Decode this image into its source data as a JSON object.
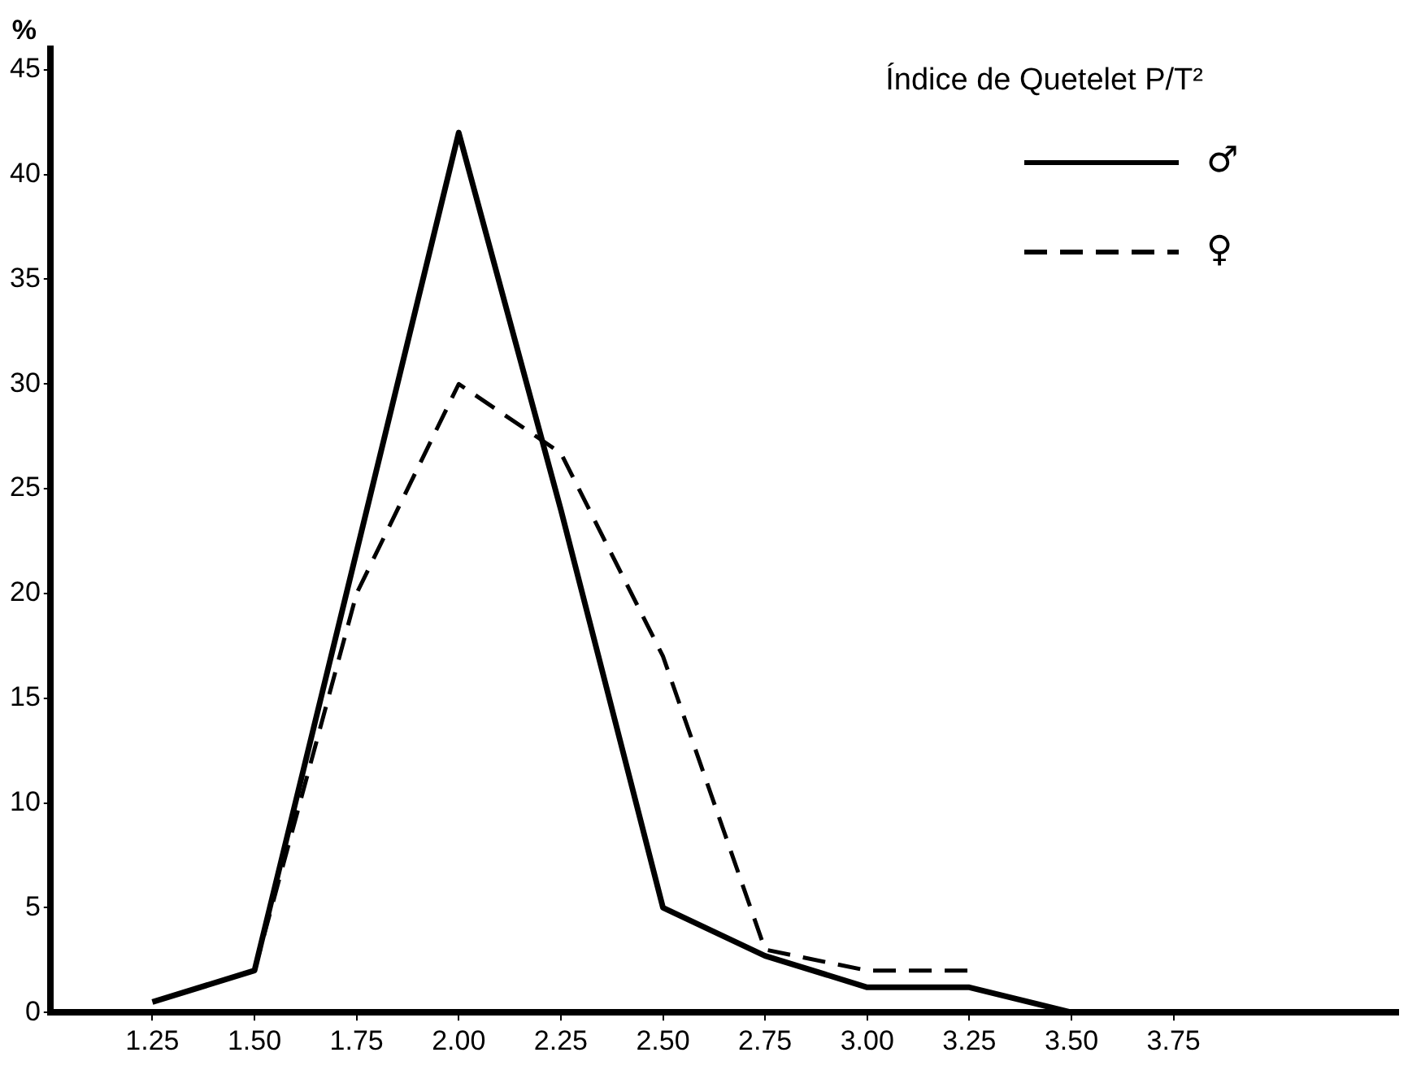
{
  "chart_data": {
    "type": "line",
    "ylabel": "%",
    "legend_title": "Índice de Quetelet P/T²",
    "xlim": [
      1.0,
      4.3
    ],
    "ylim": [
      0,
      46
    ],
    "xticks": [
      {
        "value": 1.25,
        "label": "1.25"
      },
      {
        "value": 1.5,
        "label": "1.50"
      },
      {
        "value": 1.75,
        "label": "1.75"
      },
      {
        "value": 2.0,
        "label": "2.00"
      },
      {
        "value": 2.25,
        "label": "2.25"
      },
      {
        "value": 2.5,
        "label": "2.50"
      },
      {
        "value": 2.75,
        "label": "2.75"
      },
      {
        "value": 3.0,
        "label": "3.00"
      },
      {
        "value": 3.25,
        "label": "3.25"
      },
      {
        "value": 3.5,
        "label": "3.50"
      },
      {
        "value": 3.75,
        "label": "3.75"
      }
    ],
    "yticks": [
      0,
      5,
      10,
      15,
      20,
      25,
      30,
      35,
      40,
      45
    ],
    "grid": false,
    "legend": "top right",
    "marker": "none",
    "series": [
      {
        "name": "♂",
        "color": "#000000",
        "line_style": "solid",
        "x": [
          1.25,
          1.5,
          1.75,
          2.0,
          2.25,
          2.5,
          2.75,
          3.0,
          3.25,
          3.5
        ],
        "values": [
          0.5,
          2,
          22,
          42,
          24,
          5,
          2.7,
          1.2,
          1.2,
          0
        ]
      },
      {
        "name": "♀",
        "color": "#000000",
        "line_style": "dashed",
        "x": [
          1.5,
          1.75,
          2.0,
          2.25,
          2.5,
          2.75,
          3.0,
          3.25
        ],
        "values": [
          2,
          20,
          30,
          26.7,
          17,
          3,
          2,
          2
        ]
      }
    ]
  }
}
